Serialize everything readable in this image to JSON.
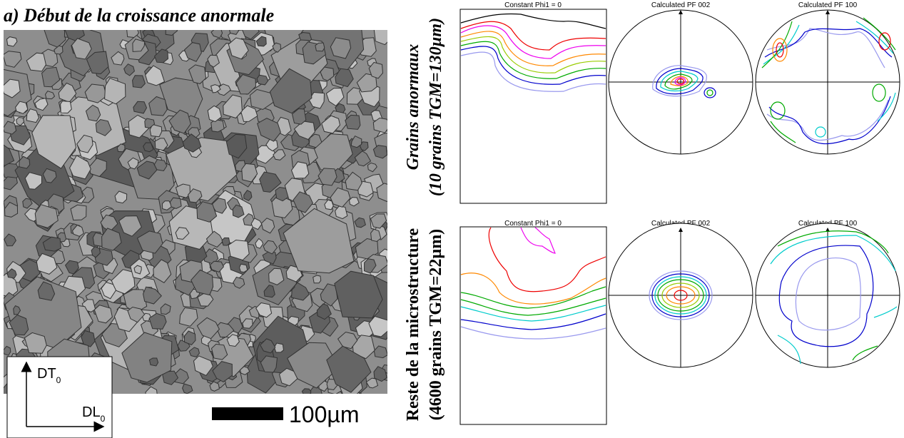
{
  "title": "a) Début de la croissance anormale",
  "scale_bar": "100µm",
  "axes": {
    "vertical": "DT",
    "vertical_sub": "0",
    "horizontal": "DL",
    "horizontal_sub": "0"
  },
  "rows": [
    {
      "label": "Grains anormaux",
      "sublabel": "(10 grains TGM=130µm)",
      "panels": [
        "Constant Phi1 = 0",
        "Calculated PF 002",
        "Calculated PF 100"
      ]
    },
    {
      "label": "Reste de la microstructure",
      "sublabel": "(4600 grains TGM=22µm)",
      "panels": [
        "Constant Phi1 = 0",
        "Calculated PF 002",
        "Calculated PF 100"
      ]
    }
  ]
}
